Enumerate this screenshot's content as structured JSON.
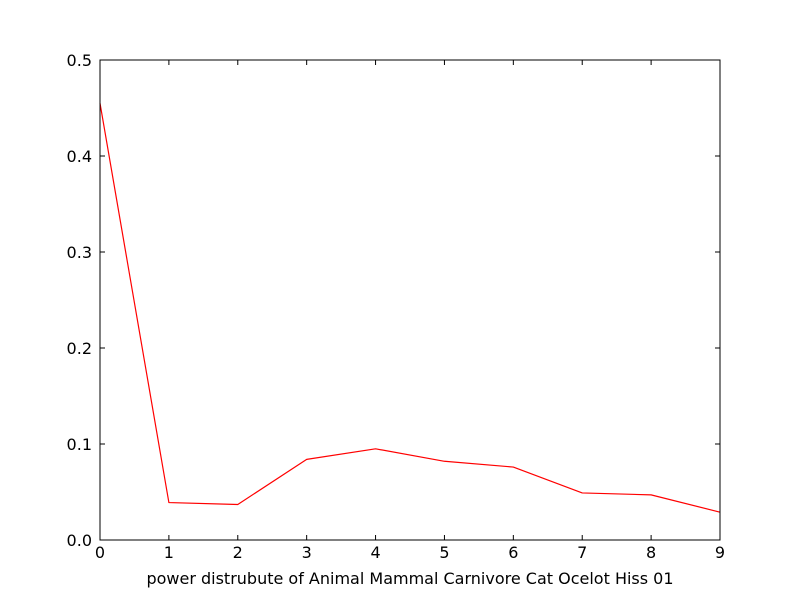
{
  "chart_data": {
    "type": "line",
    "title": "",
    "xlabel": "power distrubute of Animal Mammal Carnivore Cat Ocelot Hiss 01",
    "ylabel": "",
    "xlim": [
      0,
      9
    ],
    "ylim": [
      0,
      0.5
    ],
    "grid": false,
    "legend": "none",
    "x_ticks": [
      "0",
      "1",
      "2",
      "3",
      "4",
      "5",
      "6",
      "7",
      "8",
      "9"
    ],
    "y_ticks": [
      "0.0",
      "0.1",
      "0.2",
      "0.3",
      "0.4",
      "0.5"
    ],
    "series": [
      {
        "color": "#ff0000",
        "x": [
          0,
          1,
          2,
          3,
          4,
          5,
          6,
          7,
          8,
          9
        ],
        "values": [
          0.455,
          0.039,
          0.037,
          0.084,
          0.095,
          0.082,
          0.076,
          0.049,
          0.047,
          0.029
        ]
      }
    ]
  }
}
